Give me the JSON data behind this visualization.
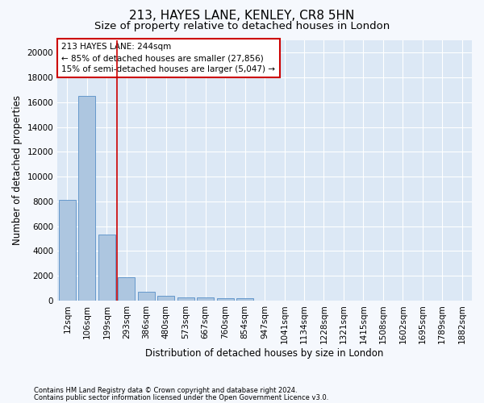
{
  "title": "213, HAYES LANE, KENLEY, CR8 5HN",
  "subtitle": "Size of property relative to detached houses in London",
  "xlabel": "Distribution of detached houses by size in London",
  "ylabel": "Number of detached properties",
  "bar_color": "#adc6e0",
  "bar_edge_color": "#6699cc",
  "vline_color": "#cc0000",
  "annotation_text": "213 HAYES LANE: 244sqm\n← 85% of detached houses are smaller (27,856)\n15% of semi-detached houses are larger (5,047) →",
  "footer1": "Contains HM Land Registry data © Crown copyright and database right 2024.",
  "footer2": "Contains public sector information licensed under the Open Government Licence v3.0.",
  "categories": [
    "12sqm",
    "106sqm",
    "199sqm",
    "293sqm",
    "386sqm",
    "480sqm",
    "573sqm",
    "667sqm",
    "760sqm",
    "854sqm",
    "947sqm",
    "1041sqm",
    "1134sqm",
    "1228sqm",
    "1321sqm",
    "1415sqm",
    "1508sqm",
    "1602sqm",
    "1695sqm",
    "1789sqm",
    "1882sqm"
  ],
  "values": [
    8100,
    16500,
    5300,
    1850,
    700,
    350,
    270,
    230,
    210,
    190,
    0,
    0,
    0,
    0,
    0,
    0,
    0,
    0,
    0,
    0,
    0
  ],
  "ylim": [
    0,
    21000
  ],
  "yticks": [
    0,
    2000,
    4000,
    6000,
    8000,
    10000,
    12000,
    14000,
    16000,
    18000,
    20000
  ],
  "bg_color": "#dce8f5",
  "grid_color": "#ffffff",
  "fig_bg_color": "#f5f8fd",
  "title_fontsize": 11,
  "subtitle_fontsize": 9.5,
  "axis_label_fontsize": 8.5,
  "tick_fontsize": 7.5,
  "annotation_fontsize": 7.5,
  "footer_fontsize": 6,
  "vline_pos": 2.5
}
